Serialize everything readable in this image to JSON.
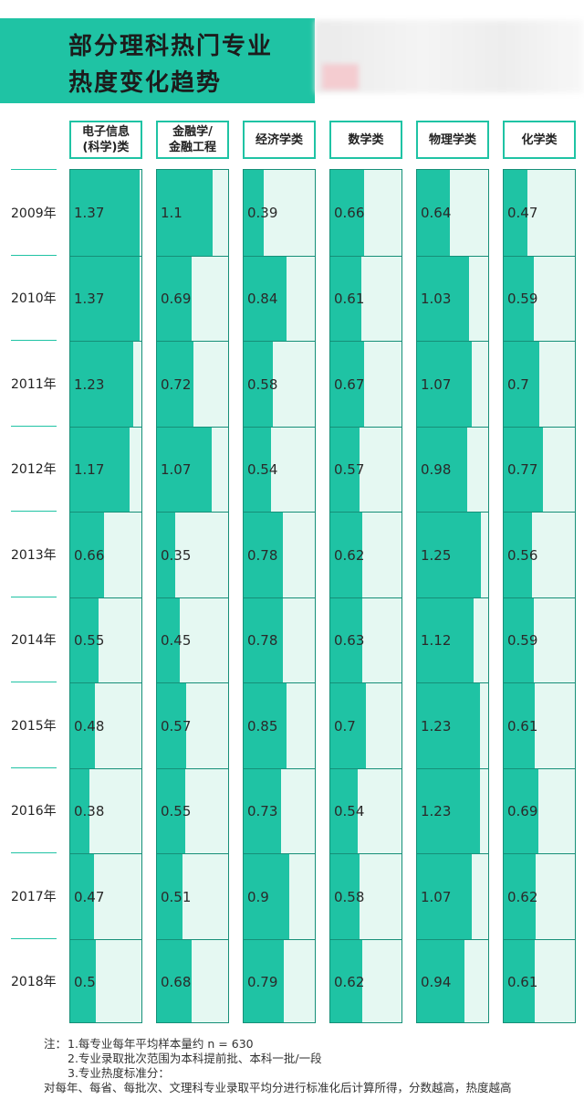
{
  "title": [
    "部分理科热门专业",
    "热度变化趋势"
  ],
  "chart_data": {
    "type": "table",
    "categories": [
      "2009年",
      "2010年",
      "2011年",
      "2012年",
      "2013年",
      "2014年",
      "2015年",
      "2016年",
      "2017年",
      "2018年"
    ],
    "xlim": [
      0,
      1.4
    ],
    "series": [
      {
        "name": "电子信息\n(科学)类",
        "values": [
          1.37,
          1.37,
          1.23,
          1.17,
          0.66,
          0.55,
          0.48,
          0.38,
          0.47,
          0.5
        ]
      },
      {
        "name": "金融学/\n金融工程",
        "values": [
          1.1,
          0.69,
          0.72,
          1.07,
          0.35,
          0.45,
          0.57,
          0.55,
          0.51,
          0.68
        ]
      },
      {
        "name": "经济学类",
        "values": [
          0.39,
          0.84,
          0.58,
          0.54,
          0.78,
          0.78,
          0.85,
          0.73,
          0.9,
          0.79
        ]
      },
      {
        "name": "数学类",
        "values": [
          0.66,
          0.61,
          0.67,
          0.57,
          0.62,
          0.63,
          0.7,
          0.54,
          0.58,
          0.62
        ]
      },
      {
        "name": "物理学类",
        "values": [
          0.64,
          1.03,
          1.07,
          0.98,
          1.25,
          1.12,
          1.23,
          1.23,
          1.07,
          0.94
        ]
      },
      {
        "name": "化学类",
        "values": [
          0.47,
          0.59,
          0.7,
          0.77,
          0.56,
          0.59,
          0.61,
          0.69,
          0.62,
          0.61
        ]
      }
    ]
  },
  "notes": {
    "label": "注：",
    "lines": [
      "1.每专业每年平均样本量约 n = 630",
      "2.专业录取批次范围为本科提前批、本科一批/一段",
      "3.专业热度标准分：",
      "对每年、每省、每批次、文理科专业录取平均分进行标准化后计算所得，分数越高，热度越高"
    ]
  },
  "colors": {
    "accent": "#1fc3a4",
    "cell_bg": "#e5f8f2",
    "border": "#168f78"
  }
}
